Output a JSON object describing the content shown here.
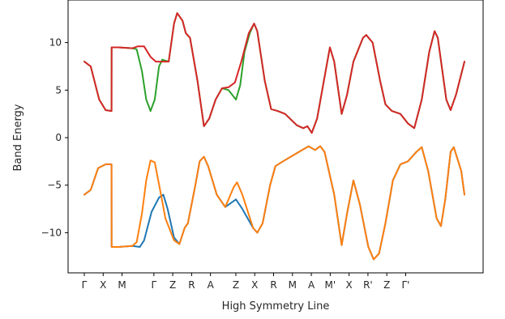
{
  "chart_data": {
    "type": "line",
    "title": "",
    "xlabel": "High Symmetry Line",
    "ylabel": "Band Energy",
    "ylim": [
      -13.8,
      14.2
    ],
    "grid": false,
    "legend": "none",
    "x_ticks": [
      "Γ",
      "X",
      "M",
      "Γ",
      "Z",
      "R",
      "A",
      "Z",
      "X",
      "R",
      "M",
      "A",
      "M'",
      "X",
      "R'",
      "Z",
      "Γ'"
    ],
    "y_ticks": [
      10,
      5,
      0,
      -5,
      -10
    ],
    "series": [
      {
        "color": "#1f77b4",
        "points": [
          [
            0.0,
            -6.0
          ],
          [
            0.6,
            -5.5
          ],
          [
            1.3,
            -3.2
          ],
          [
            2.0,
            -2.8
          ],
          [
            2.55,
            -2.8
          ],
          [
            2.56,
            -11.5
          ],
          [
            3.2,
            -11.5
          ],
          [
            4.5,
            -11.4
          ],
          [
            5.2,
            -11.5
          ],
          [
            5.6,
            -10.8
          ],
          [
            6.3,
            -7.8
          ],
          [
            7.0,
            -6.3
          ],
          [
            7.4,
            -6.0
          ],
          [
            7.8,
            -7.5
          ],
          [
            8.4,
            -10.5
          ],
          [
            8.9,
            -11.2
          ],
          [
            9.4,
            -9.5
          ],
          [
            9.7,
            -9.0
          ],
          [
            10.4,
            -5.0
          ],
          [
            10.8,
            -2.5
          ],
          [
            11.2,
            -2.0
          ],
          [
            11.6,
            -3.0
          ],
          [
            12.4,
            -6.0
          ],
          [
            13.2,
            -7.3
          ],
          [
            14.2,
            -6.5
          ],
          [
            14.8,
            -7.5
          ],
          [
            15.8,
            -9.5
          ],
          [
            16.2,
            -10.0
          ],
          [
            16.7,
            -9.0
          ],
          [
            17.4,
            -5.0
          ],
          [
            17.9,
            -3.0
          ],
          [
            18.6,
            -2.5
          ],
          [
            20.1,
            -1.5
          ],
          [
            21.0,
            -0.9
          ],
          [
            21.6,
            -1.3
          ],
          [
            22.1,
            -0.9
          ],
          [
            22.5,
            -1.5
          ],
          [
            23.4,
            -6.0
          ],
          [
            24.1,
            -11.3
          ],
          [
            24.6,
            -8.0
          ],
          [
            25.2,
            -4.5
          ],
          [
            25.8,
            -7.0
          ],
          [
            26.6,
            -11.5
          ],
          [
            27.1,
            -12.8
          ],
          [
            27.6,
            -12.2
          ],
          [
            28.2,
            -9.0
          ],
          [
            28.9,
            -4.5
          ],
          [
            29.6,
            -2.8
          ],
          [
            30.3,
            -2.5
          ],
          [
            31.1,
            -1.5
          ],
          [
            31.6,
            -1.0
          ],
          [
            32.2,
            -3.5
          ],
          [
            33.0,
            -8.5
          ],
          [
            33.4,
            -9.3
          ],
          [
            33.8,
            -6.5
          ],
          [
            34.3,
            -1.5
          ],
          [
            34.6,
            -1.0
          ],
          [
            35.3,
            -3.5
          ],
          [
            35.6,
            -6.0
          ]
        ]
      },
      {
        "color": "#ff7f0e",
        "points": [
          [
            0.0,
            -6.0
          ],
          [
            0.6,
            -5.5
          ],
          [
            1.3,
            -3.2
          ],
          [
            2.0,
            -2.8
          ],
          [
            2.55,
            -2.8
          ],
          [
            2.56,
            -11.5
          ],
          [
            3.2,
            -11.5
          ],
          [
            4.5,
            -11.4
          ],
          [
            4.9,
            -11.0
          ],
          [
            5.4,
            -8.0
          ],
          [
            5.8,
            -4.5
          ],
          [
            6.2,
            -2.4
          ],
          [
            6.6,
            -2.6
          ],
          [
            7.1,
            -5.5
          ],
          [
            7.6,
            -8.5
          ],
          [
            8.4,
            -10.8
          ],
          [
            8.9,
            -11.2
          ],
          [
            9.4,
            -9.5
          ],
          [
            9.7,
            -9.0
          ],
          [
            10.4,
            -5.0
          ],
          [
            10.8,
            -2.5
          ],
          [
            11.2,
            -2.0
          ],
          [
            11.6,
            -3.0
          ],
          [
            12.4,
            -6.0
          ],
          [
            13.2,
            -7.3
          ],
          [
            14.0,
            -5.2
          ],
          [
            14.3,
            -4.7
          ],
          [
            14.8,
            -6.0
          ],
          [
            15.8,
            -9.5
          ],
          [
            16.2,
            -10.0
          ],
          [
            16.7,
            -9.0
          ],
          [
            17.4,
            -5.0
          ],
          [
            17.9,
            -3.0
          ],
          [
            18.6,
            -2.5
          ],
          [
            20.1,
            -1.5
          ],
          [
            21.0,
            -0.9
          ],
          [
            21.6,
            -1.3
          ],
          [
            22.1,
            -0.9
          ],
          [
            22.5,
            -1.5
          ],
          [
            23.4,
            -6.0
          ],
          [
            24.1,
            -11.3
          ],
          [
            24.6,
            -8.0
          ],
          [
            25.2,
            -4.5
          ],
          [
            25.8,
            -7.0
          ],
          [
            26.6,
            -11.5
          ],
          [
            27.1,
            -12.8
          ],
          [
            27.6,
            -12.2
          ],
          [
            28.2,
            -9.0
          ],
          [
            28.9,
            -4.5
          ],
          [
            29.6,
            -2.8
          ],
          [
            30.3,
            -2.5
          ],
          [
            31.1,
            -1.5
          ],
          [
            31.6,
            -1.0
          ],
          [
            32.2,
            -3.5
          ],
          [
            33.0,
            -8.5
          ],
          [
            33.4,
            -9.3
          ],
          [
            33.8,
            -6.5
          ],
          [
            34.3,
            -1.5
          ],
          [
            34.6,
            -1.0
          ],
          [
            35.3,
            -3.5
          ],
          [
            35.6,
            -6.0
          ]
        ]
      },
      {
        "color": "#2ca02c",
        "points": [
          [
            0.0,
            8.0
          ],
          [
            0.6,
            7.5
          ],
          [
            1.4,
            4.0
          ],
          [
            2.0,
            2.9
          ],
          [
            2.55,
            2.8
          ],
          [
            2.56,
            9.5
          ],
          [
            3.2,
            9.5
          ],
          [
            4.5,
            9.4
          ],
          [
            4.9,
            9.3
          ],
          [
            5.4,
            7.0
          ],
          [
            5.8,
            4.0
          ],
          [
            6.2,
            2.8
          ],
          [
            6.6,
            4.0
          ],
          [
            7.0,
            7.5
          ],
          [
            7.3,
            8.2
          ],
          [
            7.9,
            8.0
          ],
          [
            8.4,
            12.0
          ],
          [
            8.7,
            13.1
          ],
          [
            9.2,
            12.3
          ],
          [
            9.5,
            11.0
          ],
          [
            9.9,
            10.5
          ],
          [
            10.6,
            6.0
          ],
          [
            11.2,
            1.2
          ],
          [
            11.7,
            2.0
          ],
          [
            12.3,
            4.0
          ],
          [
            12.9,
            5.2
          ],
          [
            13.5,
            5.0
          ],
          [
            14.2,
            4.0
          ],
          [
            14.6,
            5.5
          ],
          [
            15.0,
            9.0
          ],
          [
            15.5,
            11.0
          ],
          [
            15.9,
            12.0
          ],
          [
            16.2,
            11.2
          ],
          [
            16.9,
            6.0
          ],
          [
            17.5,
            3.0
          ],
          [
            18.1,
            2.8
          ],
          [
            18.8,
            2.5
          ],
          [
            19.9,
            1.3
          ],
          [
            20.5,
            1.0
          ],
          [
            20.9,
            1.2
          ],
          [
            21.3,
            0.5
          ],
          [
            21.8,
            2.0
          ],
          [
            22.6,
            7.0
          ],
          [
            23.0,
            9.5
          ],
          [
            23.4,
            8.0
          ],
          [
            24.1,
            2.5
          ],
          [
            24.6,
            4.5
          ],
          [
            25.2,
            8.0
          ],
          [
            26.1,
            10.5
          ],
          [
            26.4,
            10.8
          ],
          [
            27.0,
            10.0
          ],
          [
            27.7,
            6.0
          ],
          [
            28.2,
            3.5
          ],
          [
            28.8,
            2.8
          ],
          [
            29.6,
            2.5
          ],
          [
            30.3,
            1.5
          ],
          [
            30.9,
            1.0
          ],
          [
            31.6,
            4.0
          ],
          [
            32.3,
            9.0
          ],
          [
            32.8,
            11.2
          ],
          [
            33.1,
            10.5
          ],
          [
            33.9,
            4.0
          ],
          [
            34.3,
            2.9
          ],
          [
            34.8,
            4.5
          ],
          [
            35.6,
            8.0
          ]
        ]
      },
      {
        "color": "#d62728",
        "points": [
          [
            0.0,
            8.0
          ],
          [
            0.6,
            7.5
          ],
          [
            1.4,
            4.0
          ],
          [
            2.0,
            2.9
          ],
          [
            2.55,
            2.8
          ],
          [
            2.56,
            9.5
          ],
          [
            3.2,
            9.5
          ],
          [
            4.5,
            9.4
          ],
          [
            5.0,
            9.6
          ],
          [
            5.6,
            9.6
          ],
          [
            6.2,
            8.5
          ],
          [
            6.7,
            8.0
          ],
          [
            7.3,
            8.0
          ],
          [
            7.9,
            8.0
          ],
          [
            8.4,
            12.0
          ],
          [
            8.7,
            13.1
          ],
          [
            9.2,
            12.3
          ],
          [
            9.5,
            11.0
          ],
          [
            9.9,
            10.5
          ],
          [
            10.6,
            6.0
          ],
          [
            11.2,
            1.2
          ],
          [
            11.7,
            2.0
          ],
          [
            12.3,
            4.0
          ],
          [
            12.9,
            5.2
          ],
          [
            13.5,
            5.3
          ],
          [
            14.1,
            5.8
          ],
          [
            14.7,
            8.0
          ],
          [
            15.4,
            11.0
          ],
          [
            15.9,
            12.0
          ],
          [
            16.2,
            11.2
          ],
          [
            16.9,
            6.0
          ],
          [
            17.5,
            3.0
          ],
          [
            18.1,
            2.8
          ],
          [
            18.8,
            2.5
          ],
          [
            19.9,
            1.3
          ],
          [
            20.5,
            1.0
          ],
          [
            20.9,
            1.2
          ],
          [
            21.3,
            0.5
          ],
          [
            21.8,
            2.0
          ],
          [
            22.6,
            7.0
          ],
          [
            23.0,
            9.5
          ],
          [
            23.4,
            8.0
          ],
          [
            24.1,
            2.5
          ],
          [
            24.6,
            4.5
          ],
          [
            25.2,
            8.0
          ],
          [
            26.1,
            10.5
          ],
          [
            26.4,
            10.8
          ],
          [
            27.0,
            10.0
          ],
          [
            27.7,
            6.0
          ],
          [
            28.2,
            3.5
          ],
          [
            28.8,
            2.8
          ],
          [
            29.6,
            2.5
          ],
          [
            30.3,
            1.5
          ],
          [
            30.9,
            1.0
          ],
          [
            31.6,
            4.0
          ],
          [
            32.3,
            9.0
          ],
          [
            32.8,
            11.2
          ],
          [
            33.1,
            10.5
          ],
          [
            33.9,
            4.0
          ],
          [
            34.3,
            2.9
          ],
          [
            34.8,
            4.5
          ],
          [
            35.6,
            8.0
          ]
        ]
      }
    ]
  }
}
